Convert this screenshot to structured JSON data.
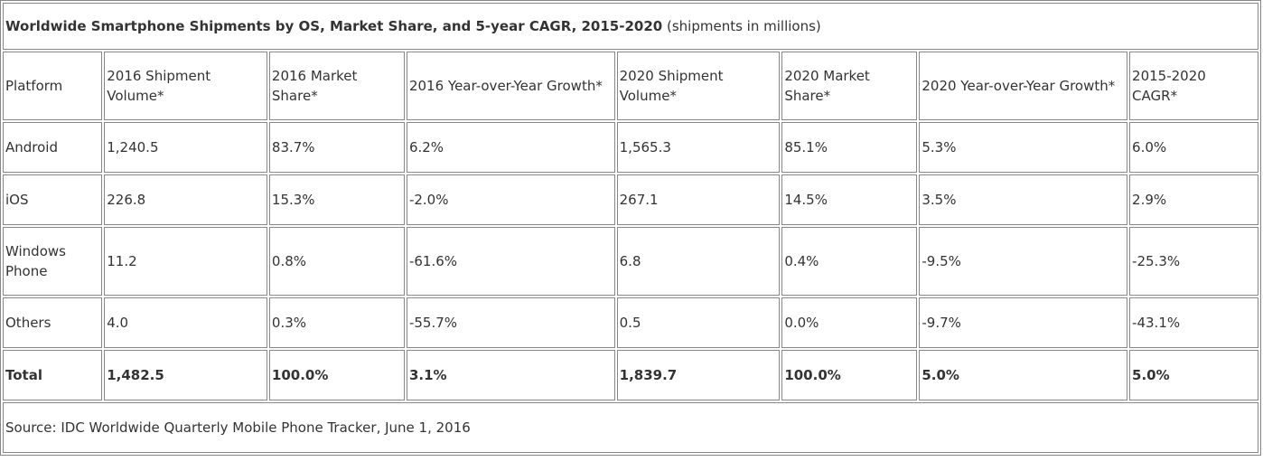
{
  "title": {
    "bold": "Worldwide Smartphone Shipments by OS, Market Share, and 5-year CAGR, 2015-2020",
    "note": "(shipments in millions)"
  },
  "headers": [
    "Platform",
    "2016 Shipment Volume*",
    "2016 Market Share*",
    "2016 Year-over-Year Growth*",
    "2020 Shipment Volume*",
    "2020 Market Share*",
    "2020 Year-over-Year Growth*",
    "2015-2020 CAGR*"
  ],
  "rows": [
    [
      "Android",
      "1,240.5",
      "83.7%",
      "6.2%",
      "1,565.3",
      "85.1%",
      "5.3%",
      "6.0%"
    ],
    [
      "iOS",
      "226.8",
      "15.3%",
      "-2.0%",
      "267.1",
      "14.5%",
      "3.5%",
      "2.9%"
    ],
    [
      "Windows Phone",
      "11.2",
      "0.8%",
      "-61.6%",
      "6.8",
      "0.4%",
      "-9.5%",
      "-25.3%"
    ],
    [
      "Others",
      "4.0",
      "0.3%",
      "-55.7%",
      "0.5",
      "0.0%",
      "-9.7%",
      "-43.1%"
    ]
  ],
  "total": [
    "Total",
    "1,482.5",
    "100.0%",
    "3.1%",
    "1,839.7",
    "100.0%",
    "5.0%",
    "5.0%"
  ],
  "source": "Source: IDC Worldwide Quarterly Mobile Phone Tracker, June 1, 2016"
}
